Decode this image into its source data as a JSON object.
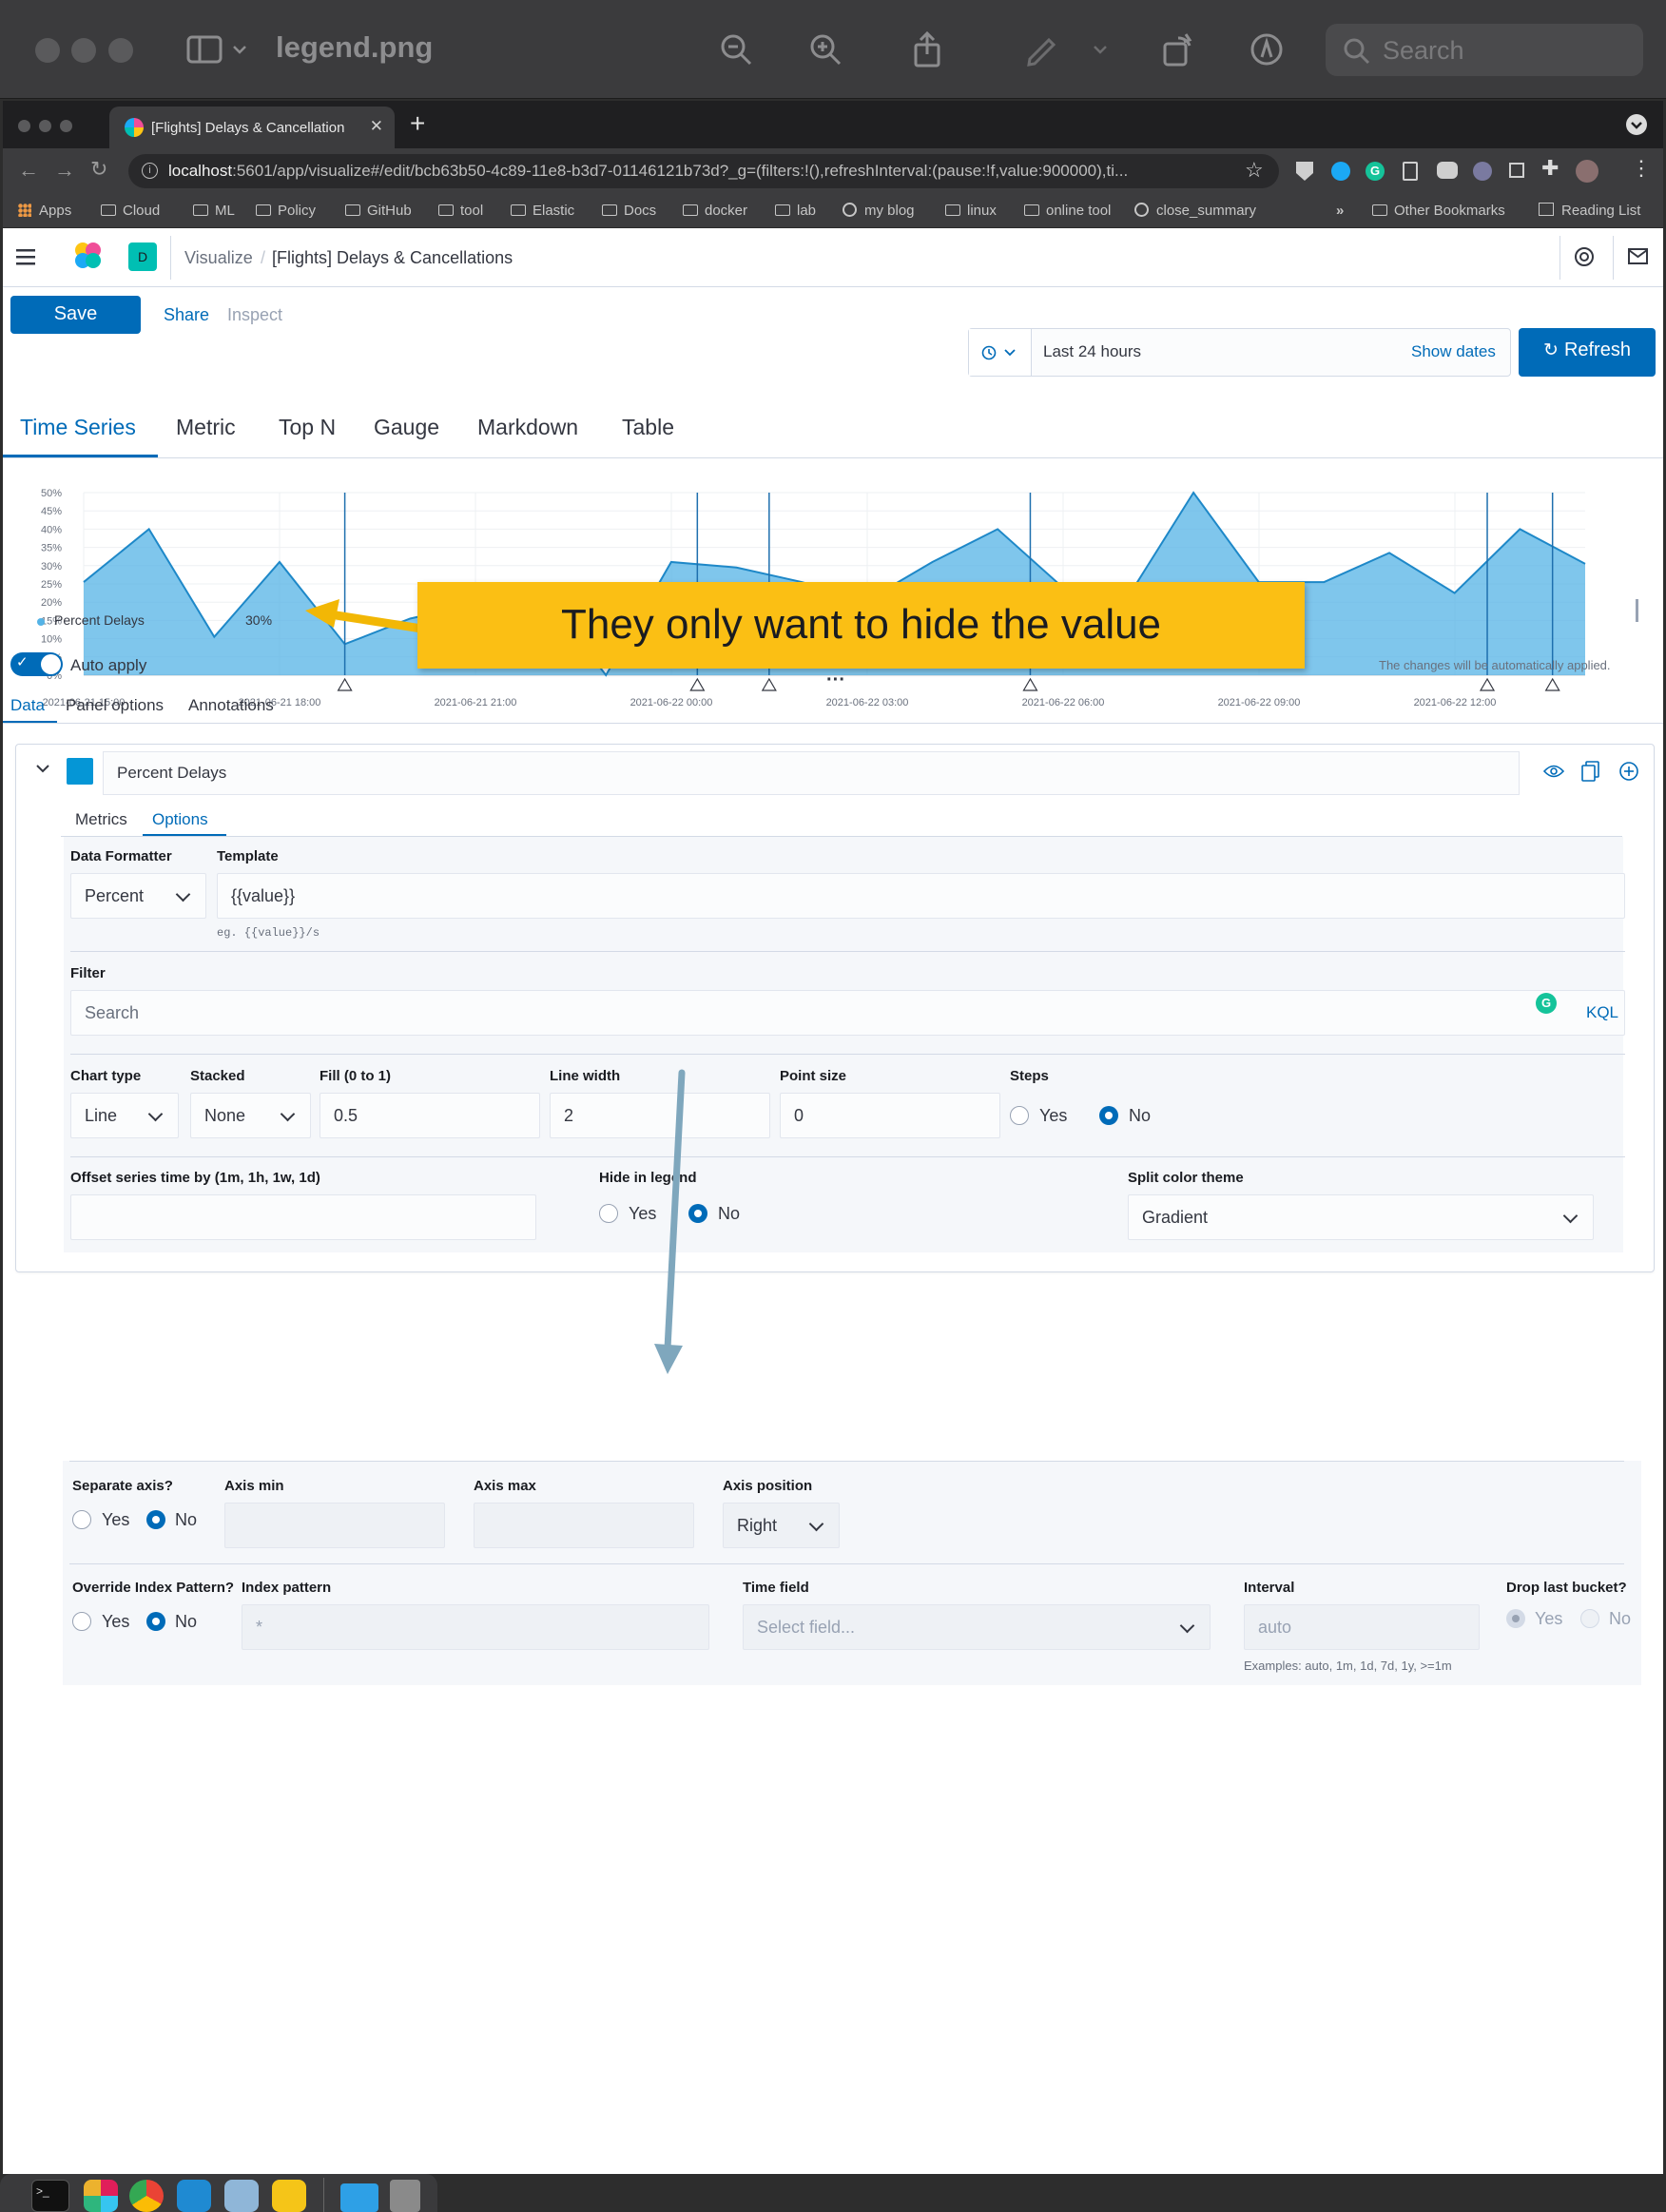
{
  "preview": {
    "title": "legend.png",
    "search": "Search",
    "icons": [
      "sidebar-icon",
      "zoom-out-icon",
      "zoom-in-icon",
      "share-icon",
      "pen-icon",
      "rotate-icon",
      "markup-icon"
    ]
  },
  "browser": {
    "tab_title": "[Flights] Delays & Cancellation",
    "url_host": "localhost",
    "url_rest": ":5601/app/visualize#/edit/bcb63b50-4c89-11e8-b3d7-01146121b73d?_g=(filters:!(),refreshInterval:(pause:!f,value:900000),ti...",
    "bookmarks": [
      "Apps",
      "Cloud",
      "ML",
      "Policy",
      "GitHub",
      "tool",
      "Elastic",
      "Docs",
      "docker",
      "lab",
      "my blog",
      "linux",
      "online tool",
      "close_summary"
    ],
    "bookmarks_right": [
      "Other Bookmarks",
      "Reading List"
    ]
  },
  "kibana": {
    "space_badge": "D",
    "breadcrumbs": [
      "Visualize",
      "[Flights] Delays & Cancellations"
    ],
    "save": "Save",
    "share": "Share",
    "inspect": "Inspect",
    "time_range": "Last 24 hours",
    "show_dates": "Show dates",
    "refresh": "Refresh",
    "vis_tabs": [
      "Time Series",
      "Metric",
      "Top N",
      "Gauge",
      "Markdown",
      "Table"
    ],
    "legend": {
      "name": "Percent Delays",
      "value": "30%"
    },
    "callout": "They only want to hide the value",
    "auto_apply": "Auto apply",
    "auto_apply_note": "The changes will be automatically applied.",
    "panel_tabs": [
      "Data",
      "Panel options",
      "Annotations"
    ],
    "series_name": "Percent Delays",
    "sub_tabs": [
      "Metrics",
      "Options"
    ],
    "opts": {
      "data_formatter_label": "Data Formatter",
      "data_formatter": "Percent",
      "template_label": "Template",
      "template": "{{value}}",
      "template_help": "eg. {{value}}/s",
      "filter_label": "Filter",
      "filter_placeholder": "Search",
      "kql": "KQL",
      "chart_type_label": "Chart type",
      "chart_type": "Line",
      "stacked_label": "Stacked",
      "stacked": "None",
      "fill_label": "Fill (0 to 1)",
      "fill": "0.5",
      "line_width_label": "Line width",
      "line_width": "2",
      "point_size_label": "Point size",
      "point_size": "0",
      "steps_label": "Steps",
      "offset_label": "Offset series time by (1m, 1h, 1w, 1d)",
      "hide_legend_label": "Hide in legend",
      "split_color_label": "Split color theme",
      "split_color": "Gradient",
      "sep_axis_label": "Separate axis?",
      "axis_min_label": "Axis min",
      "axis_max_label": "Axis max",
      "axis_pos_label": "Axis position",
      "axis_pos": "Right",
      "override_label": "Override Index Pattern?",
      "index_pattern_label": "Index pattern",
      "index_pattern": "*",
      "time_field_label": "Time field",
      "time_field": "Select field...",
      "interval_label": "Interval",
      "interval": "auto",
      "interval_help": "Examples: auto, 1m, 1d, 7d, 1y, >=1m",
      "drop_last_label": "Drop last bucket?",
      "yes": "Yes",
      "no": "No"
    }
  },
  "chart_data": {
    "type": "area",
    "y_ticks": [
      "0%",
      "5%",
      "10%",
      "15%",
      "20%",
      "25%",
      "30%",
      "35%",
      "40%",
      "45%",
      "50%"
    ],
    "x_ticks": [
      "2021-06-21 15:00",
      "2021-06-21 18:00",
      "2021-06-21 21:00",
      "2021-06-22 00:00",
      "2021-06-22 03:00",
      "2021-06-22 06:00",
      "2021-06-22 09:00",
      "2021-06-22 12:00"
    ],
    "ylim": [
      0,
      50
    ],
    "series": [
      {
        "name": "Percent Delays",
        "color": "#54b3e6",
        "values": [
          25.5,
          40,
          10.5,
          31,
          8.5,
          15.5,
          19.5,
          23.5,
          0,
          31,
          29.5,
          25.5,
          20.5,
          31,
          40,
          24,
          21.5,
          50,
          25.5,
          25.5,
          33.5,
          22.5,
          40,
          30.5
        ]
      }
    ],
    "annotation_positions": [
      4,
      9.4,
      10.5,
      14.5,
      21.5,
      22.5,
      27.6,
      28.4,
      33.4
    ]
  }
}
